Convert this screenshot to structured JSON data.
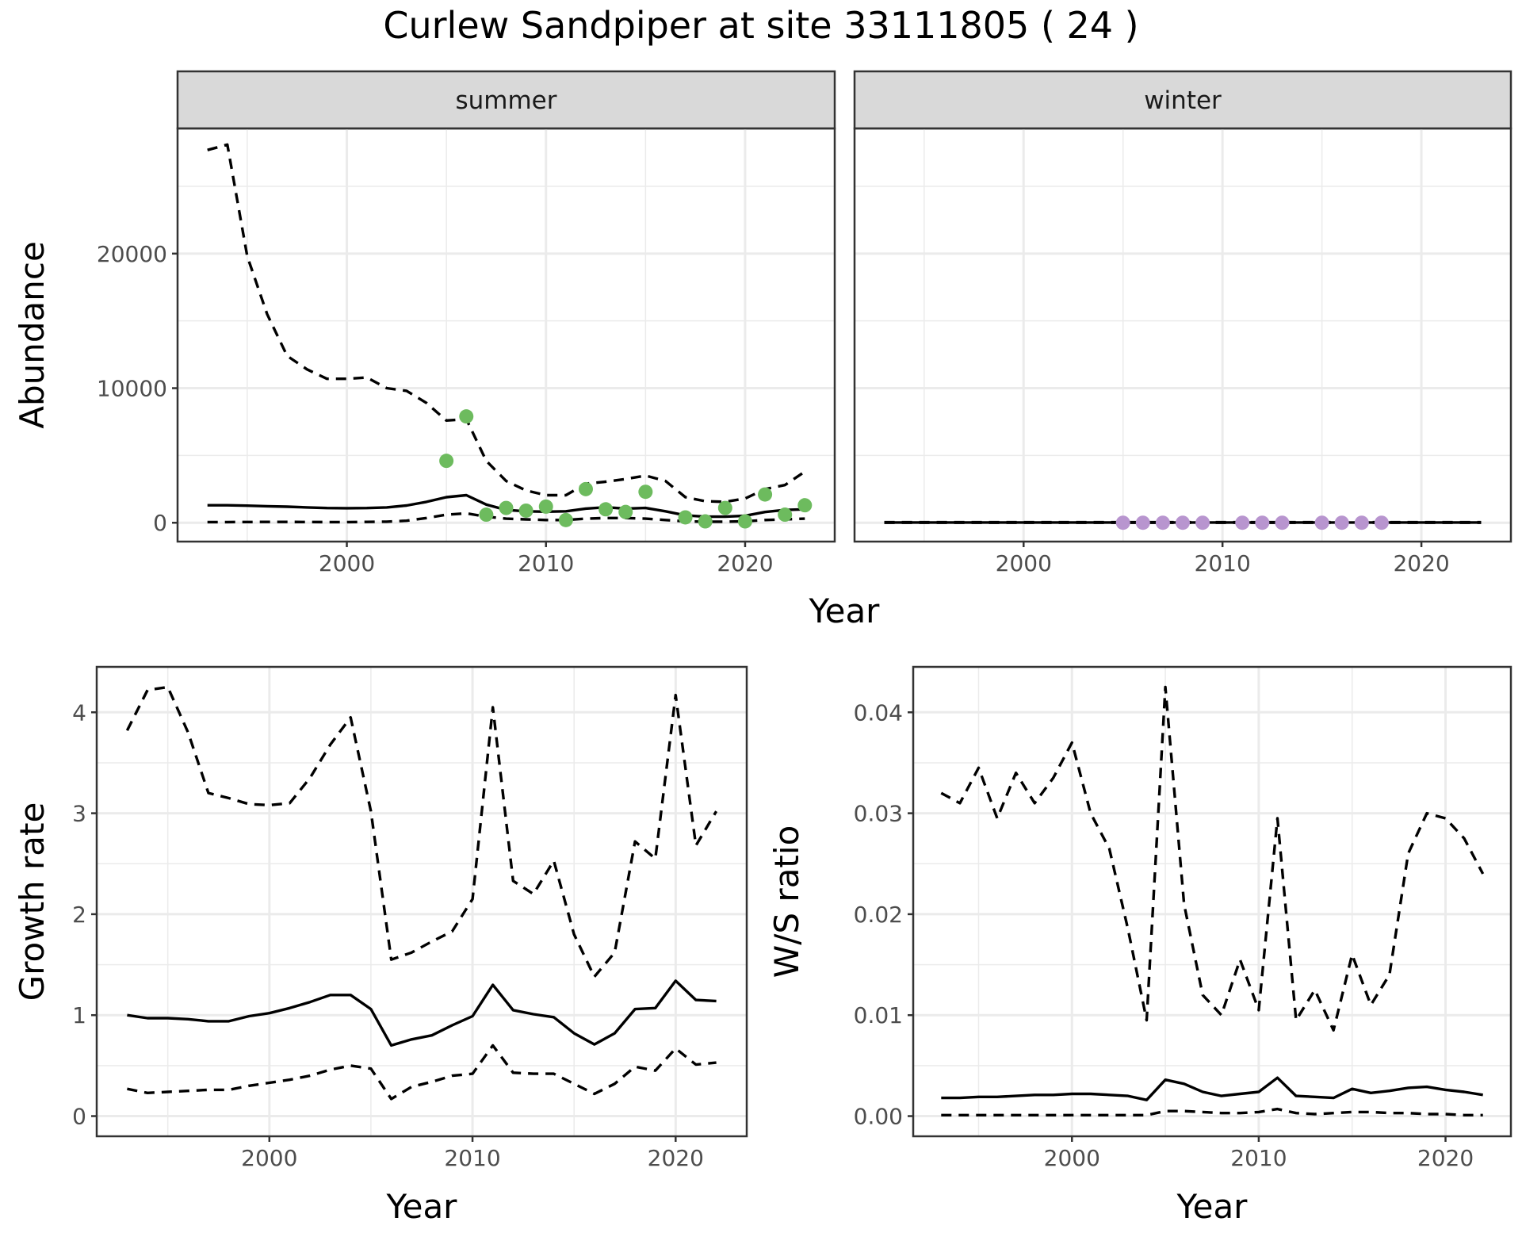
{
  "title": "Curlew Sandpiper at site 33111805 ( 24 )",
  "colors": {
    "summer_points": "#6dbb5e",
    "winter_points": "#b895cf",
    "line": "#000000",
    "grid": "#ebebeb",
    "strip": "#d9d9d9"
  },
  "chart_data": [
    {
      "type": "line",
      "panel": "abundance",
      "facets": [
        "summer",
        "winter"
      ],
      "ylabel": "Abundance",
      "xlabel": "Year",
      "xlim": [
        1991.5,
        2024.5
      ],
      "ylim": [
        -1400,
        29300
      ],
      "x_ticks": [
        2000,
        2010,
        2020
      ],
      "y_ticks": [
        0,
        10000,
        20000
      ],
      "y_tick_labels": [
        "0",
        "10000",
        "20000"
      ],
      "grid": true,
      "summer": {
        "estimate": {
          "x": [
            1993,
            1994,
            1995,
            1996,
            1997,
            1998,
            1999,
            2000,
            2001,
            2002,
            2003,
            2004,
            2005,
            2006,
            2007,
            2008,
            2009,
            2010,
            2011,
            2012,
            2013,
            2014,
            2015,
            2016,
            2017,
            2018,
            2019,
            2020,
            2021,
            2022,
            2023
          ],
          "y": [
            1300,
            1300,
            1270,
            1230,
            1190,
            1140,
            1090,
            1080,
            1090,
            1140,
            1280,
            1550,
            1900,
            2050,
            1350,
            950,
            850,
            820,
            850,
            1050,
            1150,
            1050,
            1100,
            850,
            550,
            450,
            450,
            520,
            800,
            950,
            1000
          ]
        },
        "lower": {
          "x": [
            1993,
            1994,
            1995,
            1996,
            1997,
            1998,
            1999,
            2000,
            2001,
            2002,
            2003,
            2004,
            2005,
            2006,
            2007,
            2008,
            2009,
            2010,
            2011,
            2012,
            2013,
            2014,
            2015,
            2016,
            2017,
            2018,
            2019,
            2020,
            2021,
            2022,
            2023
          ],
          "y": [
            50,
            50,
            55,
            60,
            60,
            55,
            50,
            50,
            60,
            80,
            150,
            350,
            600,
            700,
            450,
            300,
            250,
            200,
            200,
            300,
            350,
            350,
            300,
            200,
            100,
            80,
            80,
            100,
            200,
            250,
            300
          ]
        },
        "upper": {
          "x": [
            1993,
            1994,
            1995,
            1996,
            1997,
            1998,
            1999,
            2000,
            2001,
            2002,
            2003,
            2004,
            2005,
            2006,
            2007,
            2008,
            2009,
            2010,
            2011,
            2012,
            2013,
            2014,
            2015,
            2016,
            2017,
            2018,
            2019,
            2020,
            2021,
            2022,
            2023
          ],
          "y": [
            27700,
            28100,
            19800,
            15500,
            12400,
            11400,
            10700,
            10700,
            10800,
            10000,
            9800,
            8900,
            7600,
            7700,
            4600,
            3100,
            2400,
            2050,
            2050,
            2900,
            3050,
            3250,
            3500,
            3100,
            1900,
            1600,
            1550,
            1800,
            2500,
            2800,
            3800
          ]
        },
        "observed": {
          "x": [
            2005,
            2006,
            2007,
            2008,
            2009,
            2010,
            2011,
            2012,
            2013,
            2014,
            2015,
            2017,
            2018,
            2019,
            2020,
            2021,
            2022,
            2023
          ],
          "y": [
            4600,
            7900,
            600,
            1100,
            900,
            1200,
            200,
            2500,
            1000,
            800,
            2300,
            400,
            100,
            1100,
            100,
            2100,
            600,
            1300
          ]
        }
      },
      "winter": {
        "estimate": {
          "x": [
            1993,
            2023
          ],
          "y": [
            20,
            20
          ]
        },
        "lower": {
          "x": [
            1993,
            2023
          ],
          "y": [
            0,
            0
          ]
        },
        "upper": {
          "x": [
            1993,
            2023
          ],
          "y": [
            40,
            40
          ]
        },
        "observed": {
          "x": [
            2005,
            2006,
            2007,
            2008,
            2009,
            2011,
            2012,
            2013,
            2015,
            2016,
            2017,
            2018
          ],
          "y": [
            0,
            0,
            0,
            0,
            0,
            0,
            0,
            0,
            0,
            0,
            0,
            0
          ]
        }
      }
    },
    {
      "type": "line",
      "panel": "growth",
      "ylabel": "Growth rate",
      "xlabel": "Year",
      "xlim": [
        1991.5,
        2023.5
      ],
      "ylim": [
        -0.2,
        4.45
      ],
      "x_ticks": [
        2000,
        2010,
        2020
      ],
      "y_ticks": [
        0,
        1,
        2,
        3,
        4
      ],
      "y_tick_labels": [
        "0",
        "1",
        "2",
        "3",
        "4"
      ],
      "grid": true,
      "x": [
        1993,
        1994,
        1995,
        1996,
        1997,
        1998,
        1999,
        2000,
        2001,
        2002,
        2003,
        2004,
        2005,
        2006,
        2007,
        2008,
        2009,
        2010,
        2011,
        2012,
        2013,
        2014,
        2015,
        2016,
        2017,
        2018,
        2019,
        2020,
        2021,
        2022
      ],
      "estimate": [
        1.0,
        0.97,
        0.97,
        0.96,
        0.94,
        0.94,
        0.99,
        1.02,
        1.07,
        1.13,
        1.2,
        1.2,
        1.06,
        0.7,
        0.76,
        0.8,
        0.9,
        0.99,
        1.3,
        1.05,
        1.01,
        0.98,
        0.82,
        0.71,
        0.82,
        1.06,
        1.07,
        1.34,
        1.15,
        1.14
      ],
      "lower": [
        0.27,
        0.23,
        0.24,
        0.25,
        0.26,
        0.26,
        0.3,
        0.33,
        0.36,
        0.4,
        0.46,
        0.5,
        0.47,
        0.17,
        0.29,
        0.34,
        0.4,
        0.42,
        0.7,
        0.43,
        0.42,
        0.42,
        0.32,
        0.22,
        0.32,
        0.49,
        0.45,
        0.67,
        0.51,
        0.53
      ],
      "upper": [
        3.82,
        4.22,
        4.25,
        3.8,
        3.2,
        3.15,
        3.09,
        3.08,
        3.1,
        3.35,
        3.68,
        3.95,
        3.02,
        1.55,
        1.62,
        1.73,
        1.83,
        2.15,
        4.05,
        2.33,
        2.2,
        2.53,
        1.8,
        1.38,
        1.62,
        2.72,
        2.55,
        4.17,
        2.68,
        3.02
      ]
    },
    {
      "type": "line",
      "panel": "ws_ratio",
      "ylabel": "W/S ratio",
      "xlabel": "Year",
      "xlim": [
        1991.5,
        2023.5
      ],
      "ylim": [
        -0.002,
        0.0445
      ],
      "x_ticks": [
        2000,
        2010,
        2020
      ],
      "y_ticks": [
        0.0,
        0.01,
        0.02,
        0.03,
        0.04
      ],
      "y_tick_labels": [
        "0.00",
        "0.01",
        "0.02",
        "0.03",
        "0.04"
      ],
      "grid": true,
      "x": [
        1993,
        1994,
        1995,
        1996,
        1997,
        1998,
        1999,
        2000,
        2001,
        2002,
        2003,
        2004,
        2005,
        2006,
        2007,
        2008,
        2009,
        2010,
        2011,
        2012,
        2013,
        2014,
        2015,
        2016,
        2017,
        2018,
        2019,
        2020,
        2021,
        2022
      ],
      "estimate": [
        0.0018,
        0.0018,
        0.0019,
        0.0019,
        0.002,
        0.0021,
        0.0021,
        0.0022,
        0.0022,
        0.0021,
        0.002,
        0.0016,
        0.0036,
        0.0032,
        0.0024,
        0.002,
        0.0022,
        0.0024,
        0.0038,
        0.002,
        0.0019,
        0.0018,
        0.0027,
        0.0023,
        0.0025,
        0.0028,
        0.0029,
        0.0026,
        0.0024,
        0.0021
      ],
      "lower": [
        0.0001,
        0.0001,
        0.0001,
        0.0001,
        0.0001,
        0.0001,
        0.0001,
        0.0001,
        0.0001,
        0.0001,
        0.0001,
        0.0001,
        0.0005,
        0.0005,
        0.0004,
        0.0003,
        0.0003,
        0.0004,
        0.0007,
        0.0003,
        0.0002,
        0.0003,
        0.0004,
        0.0004,
        0.0003,
        0.0003,
        0.0002,
        0.0002,
        0.0001,
        0.0001
      ],
      "upper": [
        0.032,
        0.031,
        0.0345,
        0.0295,
        0.034,
        0.031,
        0.0335,
        0.037,
        0.03,
        0.0265,
        0.0185,
        0.0095,
        0.0425,
        0.021,
        0.012,
        0.01,
        0.0155,
        0.0105,
        0.0295,
        0.0095,
        0.0125,
        0.0085,
        0.016,
        0.011,
        0.014,
        0.026,
        0.03,
        0.0295,
        0.0275,
        0.024
      ]
    }
  ]
}
